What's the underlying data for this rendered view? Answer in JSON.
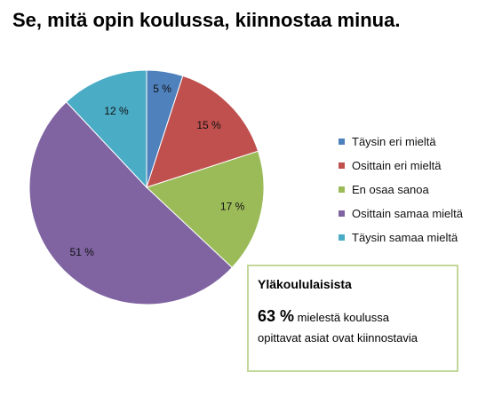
{
  "title": "Se, mitä opin koulussa, kiinnostaa minua.",
  "chart_data": {
    "type": "pie",
    "title": "Se, mitä opin koulussa, kiinnostaa minua.",
    "categories": [
      "Täysin eri mieltä",
      "Osittain eri mieltä",
      "En osaa sanoa",
      "Osittain samaa mieltä",
      "Täysin samaa mieltä"
    ],
    "values": [
      5,
      15,
      17,
      51,
      12
    ],
    "value_labels": [
      "5 %",
      "15 %",
      "17 %",
      "51 %",
      "12 %"
    ],
    "colors": [
      "#4f81bd",
      "#c0504d",
      "#9bbb59",
      "#8064a2",
      "#4bacc6"
    ],
    "legend_position": "right"
  },
  "callout": {
    "heading": "Yläkoululaisista",
    "highlight": "63 %",
    "text_line1": "mielestä koulussa",
    "text_line2": "opittavat  asiat ovat kiinnostavia"
  }
}
